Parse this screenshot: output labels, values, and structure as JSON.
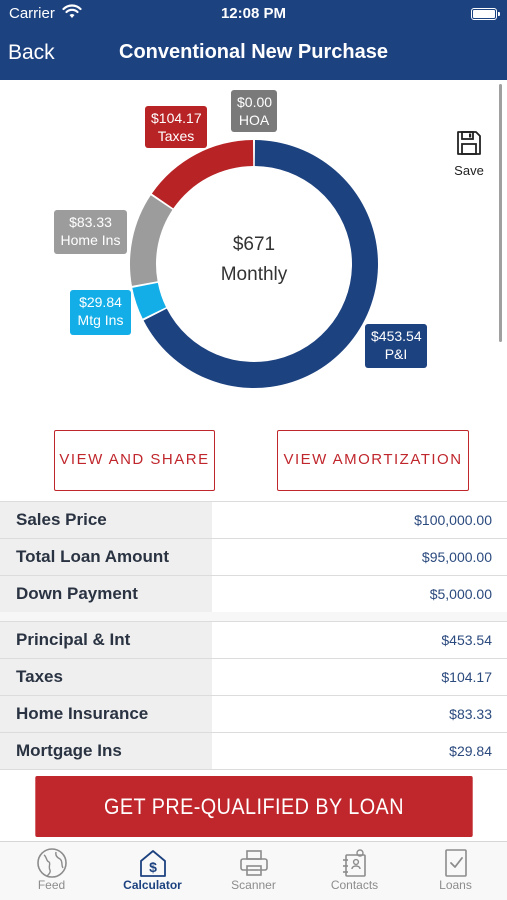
{
  "status_bar": {
    "carrier": "Carrier",
    "time": "12:08 PM"
  },
  "nav": {
    "back_label": "Back",
    "title": "Conventional New Purchase"
  },
  "save": {
    "label": "Save",
    "icon": "floppy-disk-icon"
  },
  "payment_chart": {
    "total_label": "$671",
    "period_label": "Monthly",
    "callouts": {
      "taxes": {
        "amount": "$104.17",
        "name": "Taxes"
      },
      "hoa": {
        "amount": "$0.00",
        "name": "HOA"
      },
      "home_ins": {
        "amount": "$83.33",
        "name": "Home Ins"
      },
      "mtg_ins": {
        "amount": "$29.84",
        "name": "Mtg Ins"
      },
      "pi": {
        "amount": "$453.54",
        "name": "P&I"
      }
    },
    "colors": {
      "pi": "#1d4280",
      "mtg_ins": "#13aee8",
      "home_ins": "#9c9c9c",
      "taxes": "#b82325",
      "hoa": "#7a7a7a"
    }
  },
  "chart_data": {
    "type": "pie",
    "categories": [
      "P&I",
      "Mtg Ins",
      "Home Ins",
      "Taxes",
      "HOA"
    ],
    "values": [
      453.54,
      29.84,
      83.33,
      104.17,
      0.0
    ]
  },
  "actions": {
    "view_share": "VIEW AND SHARE",
    "view_amortization": "VIEW AMORTIZATION",
    "cta": "GET PRE-QUALIFIED BY LOAN"
  },
  "loan_summary": [
    {
      "label": "Sales Price",
      "value": "$100,000.00"
    },
    {
      "label": "Total Loan Amount",
      "value": "$95,000.00"
    },
    {
      "label": "Down Payment",
      "value": "$5,000.00"
    }
  ],
  "payment_breakdown": [
    {
      "label": "Principal & Int",
      "value": "$453.54"
    },
    {
      "label": "Taxes",
      "value": "$104.17"
    },
    {
      "label": "Home Insurance",
      "value": "$83.33"
    },
    {
      "label": "Mortgage Ins",
      "value": "$29.84"
    }
  ],
  "tabs": [
    {
      "label": "Feed",
      "icon": "globe-icon",
      "active": false
    },
    {
      "label": "Calculator",
      "icon": "calculator-dollar-icon",
      "active": true
    },
    {
      "label": "Scanner",
      "icon": "printer-icon",
      "active": false
    },
    {
      "label": "Contacts",
      "icon": "contacts-icon",
      "active": false
    },
    {
      "label": "Loans",
      "icon": "document-check-icon",
      "active": false
    }
  ],
  "theme": {
    "brand_blue": "#1d4280",
    "brand_red": "#c0272d"
  }
}
